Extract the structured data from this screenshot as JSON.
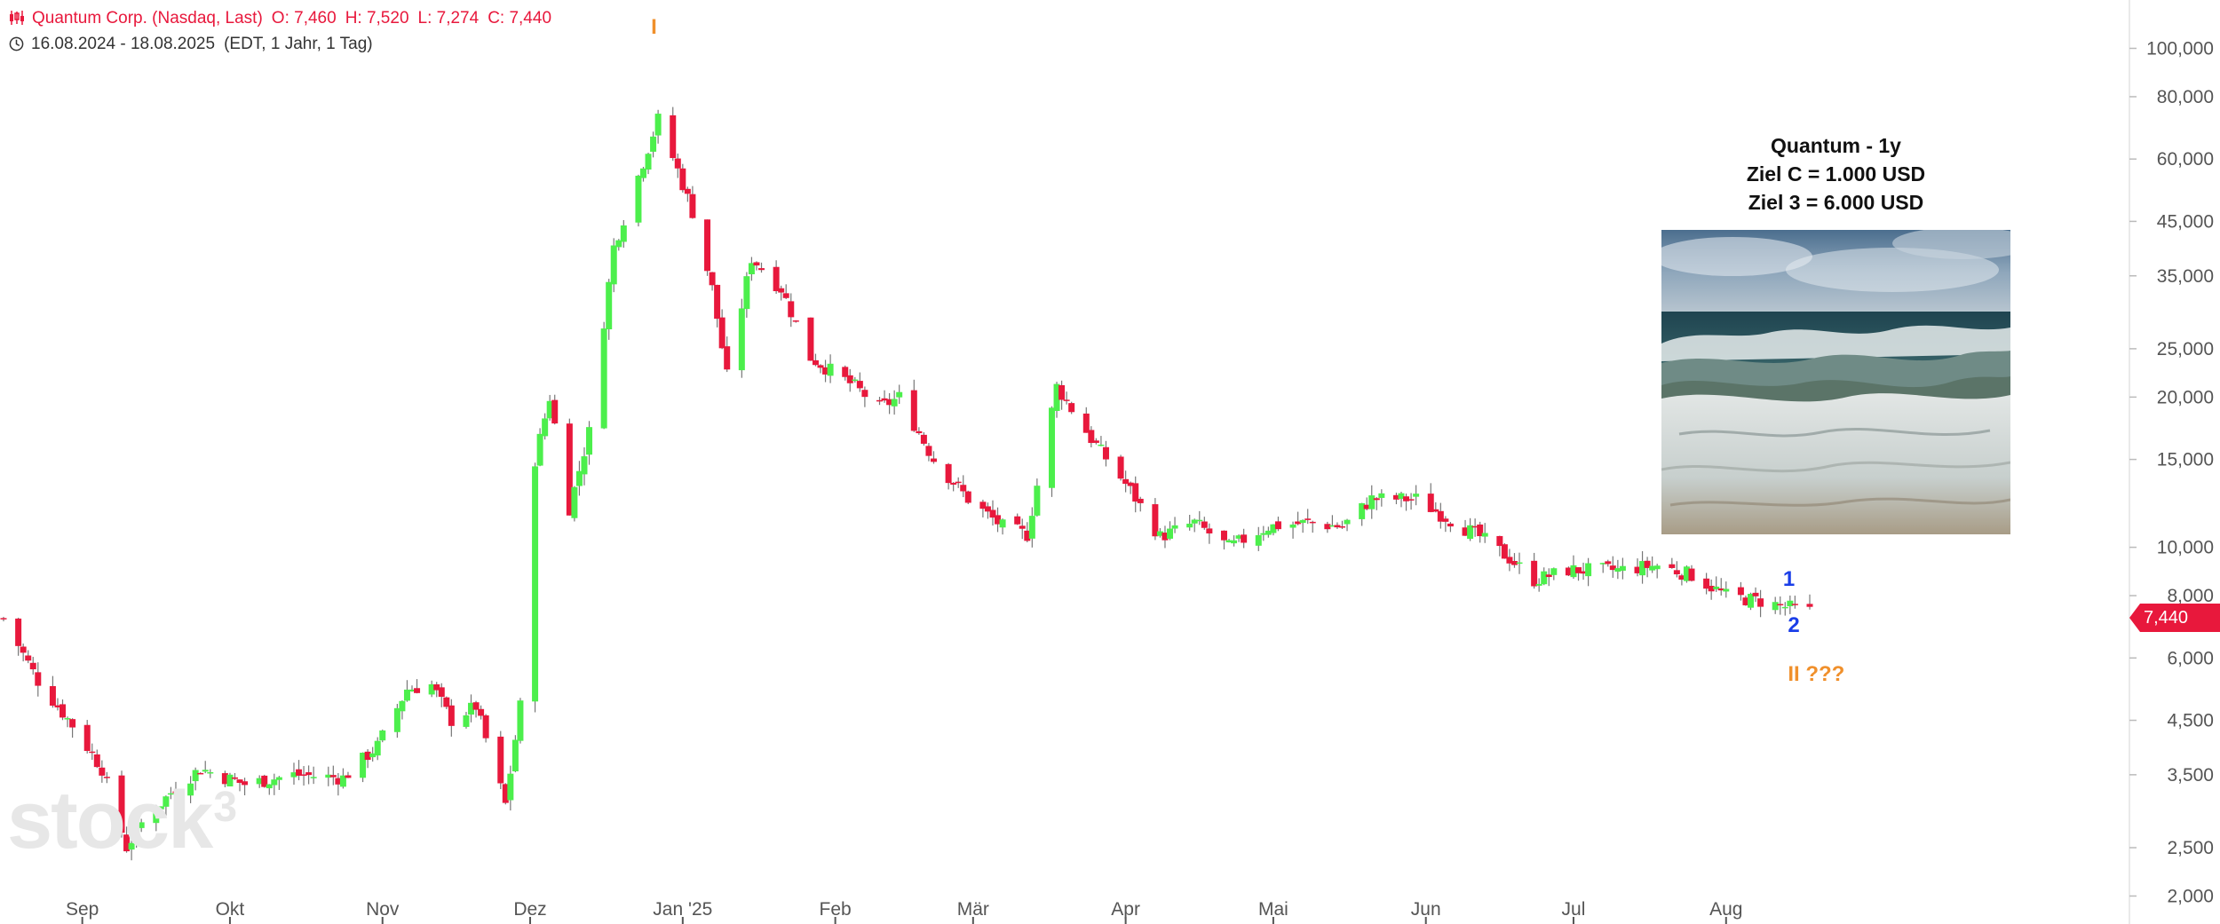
{
  "header": {
    "line1": {
      "name": "Quantum Corp. (Nasdaq, Last)",
      "open": "O: 7,460",
      "high": "H: 7,520",
      "low": "L: 7,274",
      "close": "C: 7,440"
    },
    "line2": {
      "range": "16.08.2024 - 18.08.2025",
      "settings": "(EDT, 1 Jahr, 1 Tag)"
    }
  },
  "textbox": {
    "line1": "Quantum - 1y",
    "line2": "Ziel C = 1.000 USD",
    "line3": "Ziel 3 = 6.000 USD"
  },
  "price_label": "7,440",
  "watermark": "stock3",
  "colors": {
    "up": "#4cef4c",
    "down": "#e8183c",
    "wick": "#777777",
    "axis_text": "#555555",
    "wave_blue": "#1a3ee8",
    "wave_orange": "#f0902c"
  },
  "annotations": [
    {
      "text": "I",
      "date": "2024-12-27",
      "price": 110000,
      "color": "orange"
    },
    {
      "text": "1",
      "date": "2025-08-14",
      "price": 8600,
      "color": "blue"
    },
    {
      "text": "2",
      "date": "2025-08-15",
      "price": 6950,
      "color": "blue"
    },
    {
      "text": "II ???",
      "date": "2025-08-15",
      "price": 5550,
      "color": "orange"
    }
  ],
  "chart_data": {
    "type": "candlestick",
    "title": "Quantum Corp. (Nasdaq, Last)",
    "y_scale": "log",
    "ylim": [
      1900,
      125000
    ],
    "x_range": [
      "2024-08-16",
      "2025-08-18"
    ],
    "x_ticks": [
      {
        "label": "Sep",
        "date": "2024-09-01"
      },
      {
        "label": "Okt",
        "date": "2024-10-01"
      },
      {
        "label": "Nov",
        "date": "2024-11-01"
      },
      {
        "label": "Dez",
        "date": "2024-12-01"
      },
      {
        "label": "Jan '25",
        "date": "2025-01-01"
      },
      {
        "label": "Feb",
        "date": "2025-02-01"
      },
      {
        "label": "Mär",
        "date": "2025-03-01"
      },
      {
        "label": "Apr",
        "date": "2025-04-01"
      },
      {
        "label": "Mai",
        "date": "2025-05-01"
      },
      {
        "label": "Jun",
        "date": "2025-06-01"
      },
      {
        "label": "Jul",
        "date": "2025-07-01"
      },
      {
        "label": "Aug",
        "date": "2025-08-01"
      }
    ],
    "y_ticks": [
      {
        "label": "100,000",
        "value": 100000
      },
      {
        "label": "80,000",
        "value": 80000
      },
      {
        "label": "60,000",
        "value": 60000
      },
      {
        "label": "45,000",
        "value": 45000
      },
      {
        "label": "35,000",
        "value": 35000
      },
      {
        "label": "25,000",
        "value": 25000
      },
      {
        "label": "20,000",
        "value": 20000
      },
      {
        "label": "15,000",
        "value": 15000
      },
      {
        "label": "10,000",
        "value": 10000
      },
      {
        "label": "8,000",
        "value": 8000
      },
      {
        "label": "6,000",
        "value": 6000
      },
      {
        "label": "4,500",
        "value": 4500
      },
      {
        "label": "3,500",
        "value": 3500
      },
      {
        "label": "2,500",
        "value": 2500
      },
      {
        "label": "2,000",
        "value": 2000
      }
    ],
    "close_path": [
      [
        "2024-08-16",
        7200
      ],
      [
        "2024-08-23",
        5400
      ],
      [
        "2024-08-30",
        4400
      ],
      [
        "2024-09-05",
        3600
      ],
      [
        "2024-09-10",
        2500
      ],
      [
        "2024-09-13",
        2800
      ],
      [
        "2024-09-20",
        3300
      ],
      [
        "2024-09-25",
        3600
      ],
      [
        "2024-10-04",
        3350
      ],
      [
        "2024-10-14",
        3500
      ],
      [
        "2024-10-24",
        3450
      ],
      [
        "2024-10-31",
        4000
      ],
      [
        "2024-11-06",
        5200
      ],
      [
        "2024-11-11",
        5300
      ],
      [
        "2024-11-15",
        4500
      ],
      [
        "2024-11-20",
        4800
      ],
      [
        "2024-11-26",
        3050
      ],
      [
        "2024-11-29",
        4800
      ],
      [
        "2024-12-02",
        15000
      ],
      [
        "2024-12-05",
        20000
      ],
      [
        "2024-12-09",
        12000
      ],
      [
        "2024-12-13",
        17000
      ],
      [
        "2024-12-18",
        40000
      ],
      [
        "2024-12-27",
        72000
      ],
      [
        "2024-12-31",
        57000
      ],
      [
        "2025-01-03",
        47000
      ],
      [
        "2025-01-07",
        33000
      ],
      [
        "2025-01-10",
        22000
      ],
      [
        "2025-01-15",
        38000
      ],
      [
        "2025-01-21",
        33000
      ],
      [
        "2025-01-27",
        24000
      ],
      [
        "2025-02-05",
        21000
      ],
      [
        "2025-02-10",
        19000
      ],
      [
        "2025-02-14",
        20000
      ],
      [
        "2025-02-21",
        15000
      ],
      [
        "2025-02-28",
        12500
      ],
      [
        "2025-03-07",
        11000
      ],
      [
        "2025-03-12",
        10600
      ],
      [
        "2025-03-18",
        21000
      ],
      [
        "2025-03-25",
        16500
      ],
      [
        "2025-04-02",
        13000
      ],
      [
        "2025-04-08",
        10500
      ],
      [
        "2025-04-15",
        11200
      ],
      [
        "2025-04-22",
        10000
      ],
      [
        "2025-04-30",
        11000
      ],
      [
        "2025-05-08",
        11200
      ],
      [
        "2025-05-15",
        11000
      ],
      [
        "2025-05-21",
        12500
      ],
      [
        "2025-05-30",
        12500
      ],
      [
        "2025-06-05",
        11500
      ],
      [
        "2025-06-12",
        10500
      ],
      [
        "2025-06-18",
        9500
      ],
      [
        "2025-06-23",
        8600
      ],
      [
        "2025-06-30",
        9000
      ],
      [
        "2025-07-10",
        9000
      ],
      [
        "2025-07-18",
        9200
      ],
      [
        "2025-07-25",
        8800
      ],
      [
        "2025-08-01",
        8000
      ],
      [
        "2025-08-08",
        7800
      ],
      [
        "2025-08-13",
        7600
      ],
      [
        "2025-08-18",
        7440
      ]
    ]
  }
}
